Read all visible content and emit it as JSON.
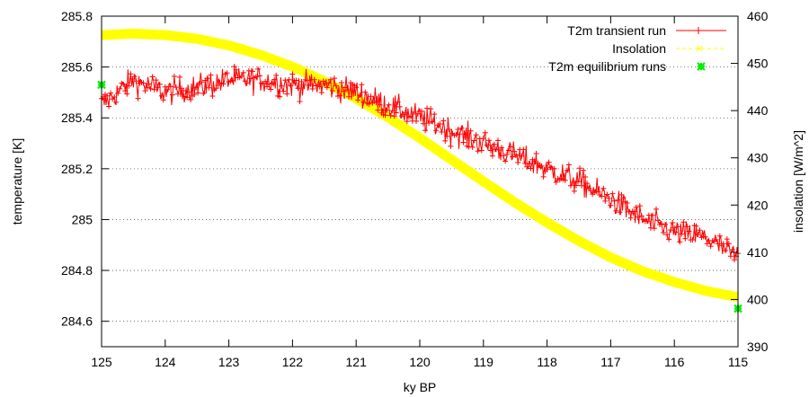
{
  "chart_data": {
    "type": "line",
    "xlabel": "ky BP",
    "ylabel_left": "temperature [K]",
    "ylabel_right": "insolation [W/m^2]",
    "xlim": [
      125,
      115
    ],
    "ylim_left": [
      284.5,
      285.8
    ],
    "ylim_right": [
      390,
      460
    ],
    "x_ticks": [
      "125",
      "124",
      "123",
      "122",
      "121",
      "120",
      "119",
      "118",
      "117",
      "116",
      "115"
    ],
    "y_left_ticks": [
      "284.6",
      "284.8",
      "285",
      "285.2",
      "285.4",
      "285.6",
      "285.8"
    ],
    "y_right_ticks": [
      "390",
      "400",
      "410",
      "420",
      "430",
      "440",
      "450",
      "460"
    ],
    "grid": "horizontal dotted at left-axis ticks",
    "legend_position": "top-right",
    "legend": [
      "T2m transient run",
      "Insolation",
      "T2m equilibrium runs"
    ],
    "colors": {
      "transient": "#ff0000",
      "insolation": "#ffff00",
      "equilibrium": "#00ee00"
    },
    "series": [
      {
        "name": "T2m transient run",
        "axis": "left",
        "x": [
          125.0,
          124.5,
          124.0,
          123.5,
          123.0,
          122.5,
          122.0,
          121.5,
          121.0,
          120.5,
          120.0,
          119.5,
          119.0,
          118.5,
          118.0,
          117.5,
          117.0,
          116.5,
          116.0,
          115.5,
          115.0
        ],
        "y": [
          285.45,
          285.55,
          285.5,
          285.52,
          285.55,
          285.55,
          285.53,
          285.53,
          285.5,
          285.45,
          285.4,
          285.35,
          285.3,
          285.25,
          285.2,
          285.15,
          285.08,
          285.0,
          284.95,
          284.93,
          284.85
        ]
      },
      {
        "name": "Insolation",
        "axis": "right",
        "x": [
          125.0,
          124.5,
          124.0,
          123.5,
          123.0,
          122.5,
          122.0,
          121.5,
          121.0,
          120.5,
          120.0,
          119.5,
          119.0,
          118.5,
          118.0,
          117.5,
          117.0,
          116.5,
          116.0,
          115.5,
          115.0
        ],
        "y": [
          456.0,
          456.3,
          456.0,
          455.2,
          453.8,
          451.8,
          449.3,
          446.2,
          442.6,
          438.6,
          434.2,
          429.6,
          425.0,
          420.5,
          416.3,
          412.4,
          408.9,
          406.0,
          403.7,
          401.8,
          400.5
        ]
      },
      {
        "name": "T2m equilibrium runs",
        "axis": "left",
        "x": [
          125.0,
          115.0
        ],
        "y": [
          285.53,
          284.65
        ]
      }
    ]
  }
}
